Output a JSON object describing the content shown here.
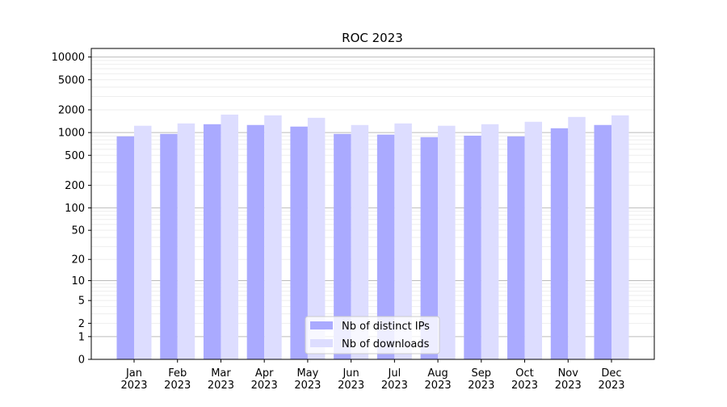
{
  "chart_data": {
    "type": "bar",
    "title": "ROC 2023",
    "xlabel": "",
    "ylabel": "",
    "yscale": "log(1+y) (symlog-like)",
    "ylim": [
      0,
      13000
    ],
    "yticks": [
      0,
      1,
      2,
      5,
      10,
      20,
      50,
      100,
      200,
      500,
      1000,
      2000,
      5000,
      10000
    ],
    "grid": true,
    "legend_position": "bottom-center",
    "categories": [
      "Jan\n2023",
      "Feb\n2023",
      "Mar\n2023",
      "Apr\n2023",
      "May\n2023",
      "Jun\n2023",
      "Jul\n2023",
      "Aug\n2023",
      "Sep\n2023",
      "Oct\n2023",
      "Nov\n2023",
      "Dec\n2023"
    ],
    "series": [
      {
        "name": "Nb of distinct IPs",
        "color": "#aaaaff",
        "values": [
          890,
          960,
          1290,
          1260,
          1200,
          960,
          940,
          870,
          910,
          890,
          1140,
          1260
        ]
      },
      {
        "name": "Nb of downloads",
        "color": "#ddddff",
        "values": [
          1230,
          1320,
          1730,
          1690,
          1570,
          1260,
          1320,
          1230,
          1290,
          1390,
          1610,
          1690
        ]
      }
    ]
  }
}
